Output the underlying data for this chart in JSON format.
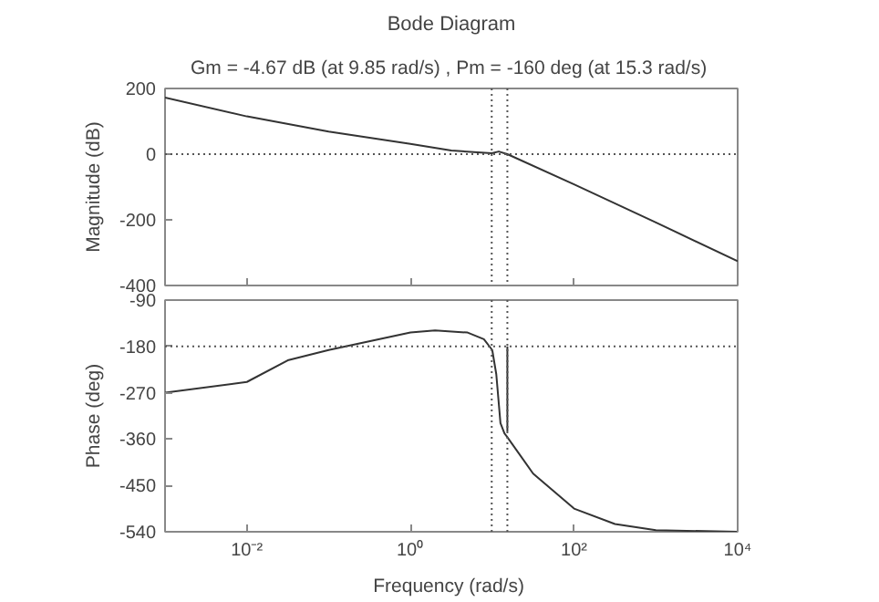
{
  "chart_data": [
    {
      "type": "line",
      "title": "Bode Diagram",
      "subtitle": "Gm = -4.67 dB (at 9.85 rad/s) ,  Pm = -160 deg (at 15.3 rad/s)",
      "ylabel": "Magnitude (dB)",
      "log": "x",
      "grid": false,
      "tick_labels": "y",
      "xlim": [
        0.001,
        10000
      ],
      "xticks": [
        {
          "value": 0.01,
          "label": null
        },
        {
          "value": 1,
          "label": null
        },
        {
          "value": 100,
          "label": null
        }
      ],
      "ylim": [
        -400,
        200
      ],
      "yticks": [
        -400,
        -200,
        0,
        200
      ],
      "series": [
        {
          "color": "#333333",
          "x": [
            0.001,
            0.01,
            0.1,
            1,
            3.16,
            9.85,
            12,
            15.3,
            100,
            1000,
            10000
          ],
          "values": [
            172,
            115,
            69,
            31,
            11,
            3,
            8,
            0,
            -92,
            -208,
            -326
          ]
        }
      ],
      "ref_lines": [
        {
          "axis": "y",
          "value": 0,
          "line_style": "dotted",
          "color": "#555555"
        },
        {
          "axis": "x",
          "value": 9.85,
          "line_style": "dotted",
          "color": "#555555"
        },
        {
          "axis": "x",
          "value": 15.3,
          "line_style": "dotted",
          "color": "#555555"
        }
      ]
    },
    {
      "type": "line",
      "xlabel": "Frequency  (rad/s)",
      "ylabel": "Phase (deg)",
      "log": "x",
      "grid": false,
      "xlim": [
        0.001,
        10000
      ],
      "xticks": [
        {
          "value": 0.01,
          "label": "10⁻²"
        },
        {
          "value": 1,
          "label": "10⁰"
        },
        {
          "value": 100,
          "label": "10²"
        },
        {
          "value": 10000,
          "label": "10⁴"
        }
      ],
      "ylim": [
        -540,
        -90
      ],
      "yticks": [
        -540,
        -450,
        -360,
        -270,
        -180,
        -90
      ],
      "series": [
        {
          "color": "#333333",
          "x": [
            0.001,
            0.01,
            0.0316,
            0.1,
            1,
            2,
            5,
            7.9,
            10,
            11.2,
            12.6,
            14.1,
            15.1,
            31.6,
            100,
            316,
            1000,
            10000
          ],
          "values": [
            -270,
            -249,
            -207,
            -187,
            -153,
            -149,
            -153,
            -166,
            -187,
            -234,
            -329,
            -349,
            -355,
            -427,
            -495,
            -525,
            -537,
            -540
          ]
        },
        {
          "color": "#333333",
          "x": [
            15.3,
            15.3
          ],
          "values": [
            -180,
            -345
          ]
        }
      ],
      "ref_lines": [
        {
          "axis": "y",
          "value": -180,
          "line_style": "dotted",
          "color": "#555555"
        },
        {
          "axis": "x",
          "value": 9.85,
          "line_style": "dotted",
          "color": "#555555"
        },
        {
          "axis": "x",
          "value": 15.3,
          "line_style": "dotted",
          "color": "#555555"
        }
      ]
    }
  ]
}
